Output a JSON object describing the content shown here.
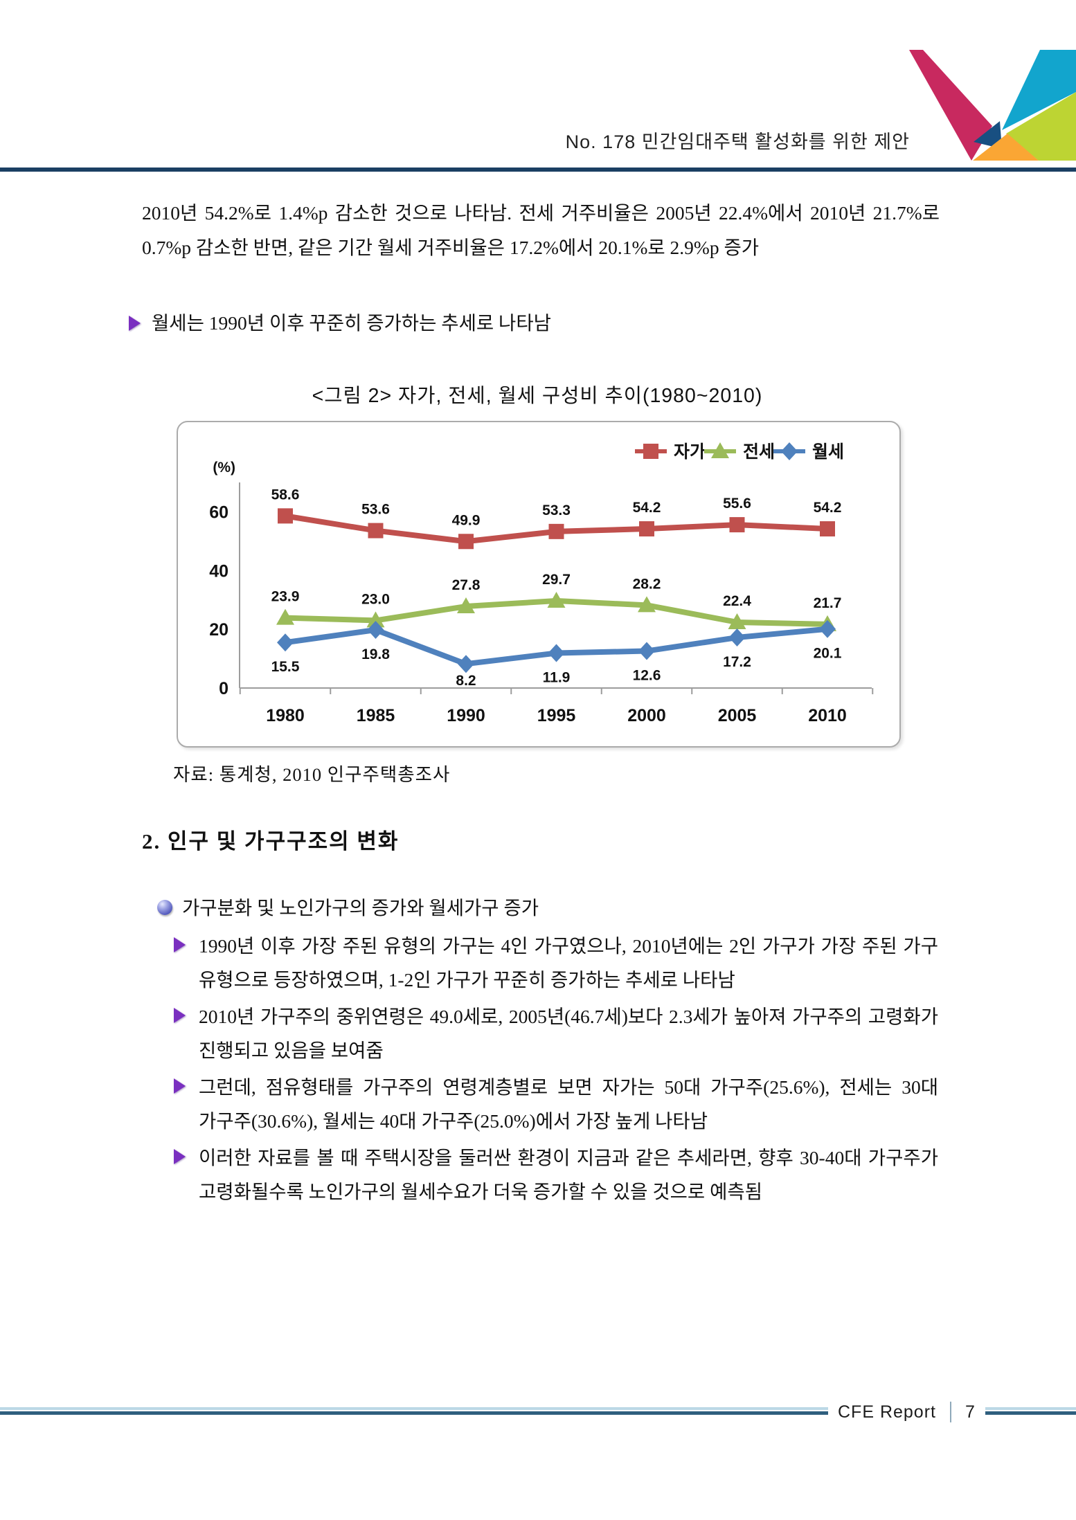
{
  "header": {
    "title": "No. 178 민간임대주택 활성화를 위한 제안"
  },
  "intro": {
    "paragraph": "2010년 54.2%로 1.4%p 감소한 것으로 나타남. 전세 거주비율은 2005년 22.4%에서 2010년 21.7%로 0.7%p 감소한 반면, 같은 기간 월세 거주비율은 17.2%에서 20.1%로 2.9%p 증가",
    "bullet": "월세는 1990년 이후 꾸준히 증가하는 추세로 나타남"
  },
  "figure": {
    "title": "<그림 2> 자가, 전세, 월세 구성비 추이(1980~2010)",
    "source": "자료: 통계청, 2010 인구주택총조사"
  },
  "chart_data": {
    "type": "line",
    "title": "자가, 전세, 월세 구성비 추이(1980~2010)",
    "xlabel": "",
    "ylabel": "(%)",
    "unit_label": "(%)",
    "categories": [
      "1980",
      "1985",
      "1990",
      "1995",
      "2000",
      "2005",
      "2010"
    ],
    "series": [
      {
        "key": "jaga",
        "name": "자가",
        "color": "#c0504d",
        "marker": "square",
        "label_position": "above",
        "values": [
          58.6,
          53.6,
          49.9,
          53.3,
          54.2,
          55.6,
          54.2
        ]
      },
      {
        "key": "jeonse",
        "name": "전세",
        "color": "#9bbb59",
        "marker": "triangle",
        "label_position": "above",
        "values": [
          23.9,
          23.0,
          27.8,
          29.7,
          28.2,
          22.4,
          21.7
        ]
      },
      {
        "key": "wolse",
        "name": "월세",
        "color": "#4f81bd",
        "marker": "diamond",
        "label_position": "below",
        "values": [
          15.5,
          19.8,
          8.2,
          11.9,
          12.6,
          17.2,
          20.1
        ]
      }
    ],
    "y_ticks": [
      0,
      20,
      40,
      60
    ],
    "ylim": [
      0,
      70
    ],
    "grid": false,
    "legend_position": "top-right"
  },
  "section2": {
    "heading": "2. 인구 및 가구구조의 변화",
    "lead_bullet": "가구분화 및 노인가구의 증가와 월세가구 증가",
    "sub_bullets": [
      "1990년 이후 가장 주된 유형의 가구는 4인 가구였으나, 2010년에는 2인 가구가 가장 주된 가구 유형으로 등장하였으며, 1-2인 가구가 꾸준히 증가하는 추세로 나타남",
      "2010년 가구주의 중위연령은 49.0세로, 2005년(46.7세)보다 2.3세가 높아져 가구주의 고령화가 진행되고 있음을 보여줌",
      "그런데, 점유형태를 가구주의 연령계층별로 보면 자가는 50대 가구주(25.6%), 전세는 30대 가구주(30.6%), 월세는 40대 가구주(25.0%)에서 가장 높게 나타남",
      "이러한 자료를 볼 때 주택시장을 둘러싼 환경이 지금과 같은 추세라면, 향후 30-40대 가구주가 고령화될수록 노인가구의 월세수요가 더욱 증가할 수 있을 것으로 예측됨"
    ]
  },
  "footer": {
    "label": "CFE Report",
    "page": "7"
  },
  "logo_colors": {
    "magenta": "#c8295f",
    "cyan": "#12a5cd",
    "navy": "#184f81",
    "lime": "#bdd433",
    "orange": "#faa634"
  }
}
